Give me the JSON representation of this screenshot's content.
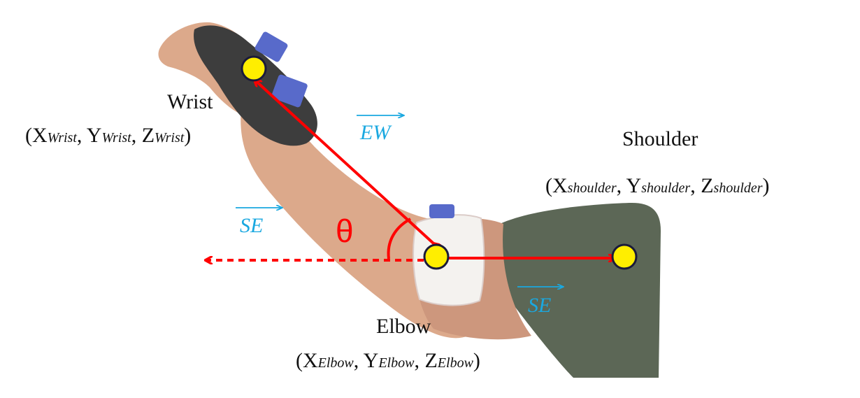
{
  "colors": {
    "joint_fill": "#ffee00",
    "joint_stroke": "#1a1a3a",
    "arrow": "#ff0000",
    "vector_label": "#1aa8e0",
    "text": "#111111"
  },
  "joints": {
    "wrist": {
      "name": "Wrist",
      "coord": {
        "open": "(X",
        "sub_x": "Wrist",
        "sep1": ", Y",
        "sub_y": "Wrist",
        "sep2": ", Z",
        "sub_z": "Wrist",
        "close": ")"
      }
    },
    "shoulder": {
      "name": "Shoulder",
      "coord": {
        "open": "(X",
        "sub_x": "shoulder",
        "sep1": ", Y",
        "sub_y": "shoulder",
        "sep2": ", Z",
        "sub_z": "shoulder",
        "close": ")"
      }
    },
    "elbow": {
      "name": "Elbow",
      "coord": {
        "open": "(X",
        "sub_x": "Elbow",
        "sep1": ", Y",
        "sub_y": "Elbow",
        "sep2": ", Z",
        "sub_z": "Elbow",
        "close": ")"
      }
    }
  },
  "vectors": {
    "ew": "EW",
    "se_left": "SE",
    "se_lower": "SE"
  },
  "angle": "θ"
}
